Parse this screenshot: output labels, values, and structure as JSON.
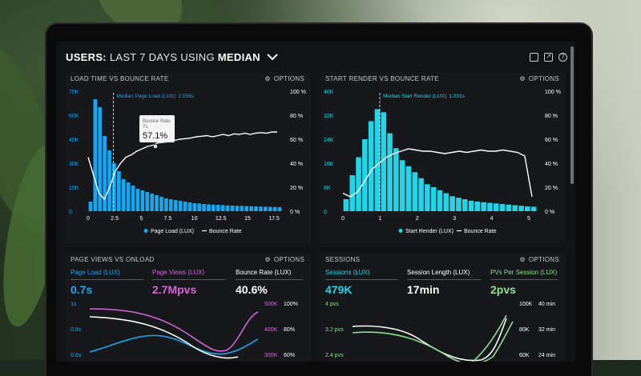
{
  "header": {
    "prefix": "USERS:",
    "middle": " LAST 7 DAYS USING ",
    "suffix": "MEDIAN"
  },
  "colors": {
    "cyan": "#1aa6ef",
    "teal": "#25d2e6",
    "magenta": "#d566d8",
    "green": "#8de08e",
    "white": "#ffffff"
  },
  "options_label": "OPTIONS",
  "panels": {
    "load_vs_bounce": {
      "title": "LOAD TIME VS BOUNCE RATE",
      "median_label": "Median Page Load (LUX): 2.056s",
      "tooltip": {
        "label": "Bounce Rate",
        "sub": "7s",
        "value": "57.1%"
      },
      "legend": [
        "Page Load (LUX)",
        "Bounce Rate"
      ],
      "chart_data": {
        "type": "bar",
        "y_ticks": [
          "75K",
          "60K",
          "45K",
          "30K",
          "15K",
          "0"
        ],
        "y2_ticks": [
          "100 %",
          "80 %",
          "60 %",
          "40 %",
          "20 %",
          "0 %"
        ],
        "x_ticks": [
          "0",
          "2.5",
          "5",
          "7.5",
          "10",
          "12.5",
          "15",
          "17.5"
        ],
        "bars": [
          6,
          70,
          65,
          47,
          38,
          30,
          25,
          20,
          18,
          16,
          14,
          13,
          12,
          11,
          10,
          9,
          8,
          7.5,
          7,
          6.5,
          6,
          5.5,
          5,
          4.8,
          4.5,
          4.3,
          4.1,
          4,
          3.8,
          3.6,
          3.5,
          3.4,
          3.3,
          3.2,
          3.1,
          3,
          2.9,
          2.8,
          2.7,
          2.6,
          2.5
        ],
        "bounce": [
          45,
          30,
          15,
          10,
          20,
          33,
          40,
          45,
          47,
          50,
          52,
          54,
          55,
          57,
          57.5,
          58,
          59,
          60,
          60.5,
          61,
          62,
          62.5,
          63,
          62,
          63,
          64,
          63,
          64.5,
          64,
          65,
          64,
          65,
          65.5,
          65,
          66,
          66
        ]
      }
    },
    "render_vs_bounce": {
      "title": "START RENDER VS BOUNCE RATE",
      "median_label": "Median Start Render (LUX): 1.031s",
      "legend": [
        "Start Render (LUX)",
        "Bounce Rate"
      ],
      "chart_data": {
        "type": "bar",
        "y_ticks": [
          "40K",
          "32K",
          "24K",
          "16K",
          "8K",
          "0"
        ],
        "y2_ticks": [
          "100 %",
          "80 %",
          "60 %",
          "40 %",
          "20 %",
          "0 %"
        ],
        "x_ticks": [
          "0",
          "1",
          "2",
          "3",
          "4",
          "5"
        ],
        "bars": [
          4,
          12,
          18,
          24,
          30,
          34,
          33,
          26,
          21,
          17,
          15,
          13,
          11,
          9,
          8,
          7,
          6,
          5,
          4.5,
          4,
          3.5,
          3.2,
          3,
          2.8,
          2.6,
          2.4,
          2.2,
          2,
          1.8,
          1.6,
          1.5
        ],
        "bounce": [
          15,
          12,
          16,
          25,
          35,
          40,
          45,
          48,
          50,
          52,
          51,
          50,
          50,
          49,
          48,
          49,
          50,
          49,
          50,
          51,
          50,
          50,
          51,
          50,
          49,
          46,
          12
        ]
      }
    },
    "page_views": {
      "title": "PAGE VIEWS VS ONLOAD",
      "metrics": [
        {
          "label": "Page Load (LUX)",
          "value": "0.7s"
        },
        {
          "label": "Page Views (LUX)",
          "value": "2.7Mpvs"
        },
        {
          "label": "Bounce Rate (LUX)",
          "value": "40.6%"
        }
      ],
      "y_ticks": [
        "1s",
        "0.8s",
        "0.6s"
      ],
      "y2_ticks": [
        "500K",
        "400K",
        "300K"
      ],
      "y3_ticks": [
        "100%",
        "80%",
        "60%"
      ]
    },
    "sessions": {
      "title": "SESSIONS",
      "metrics": [
        {
          "label": "Sessions (LUX)",
          "value": "479K"
        },
        {
          "label": "Session Length (LUX)",
          "value": "17min"
        },
        {
          "label": "PVs Per Session (LUX)",
          "value": "2pvs"
        }
      ],
      "y_ticks": [
        "4 pvs",
        "3.2 pvs",
        "2.4 pvs"
      ],
      "y2_ticks": [
        "100K",
        "80K",
        "60K"
      ],
      "y3_ticks": [
        "40 min",
        "32 min",
        "24 min"
      ]
    }
  }
}
